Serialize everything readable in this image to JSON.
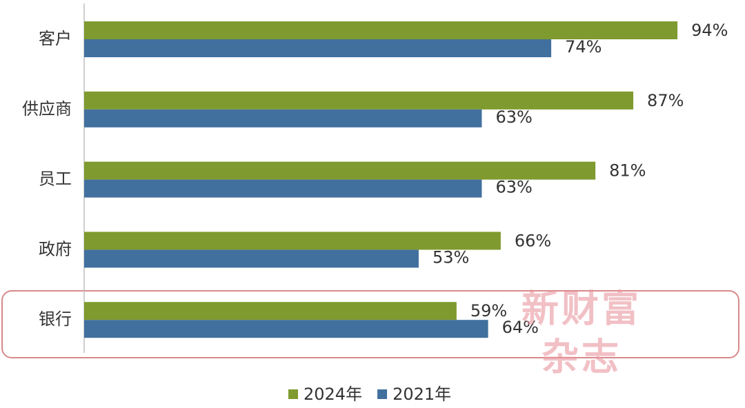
{
  "chart_data": {
    "type": "bar",
    "orientation": "horizontal",
    "categories": [
      "客户",
      "供应商",
      "员工",
      "政府",
      "银行"
    ],
    "series": [
      {
        "name": "2024年",
        "color": "#7f9a2e",
        "values": [
          94,
          87,
          81,
          66,
          59
        ],
        "value_labels": [
          "94%",
          "87%",
          "81%",
          "66%",
          "59%"
        ]
      },
      {
        "name": "2021年",
        "color": "#41709e",
        "values": [
          74,
          63,
          63,
          53,
          64
        ],
        "value_labels": [
          "74%",
          "63%",
          "63%",
          "53%",
          "64%"
        ]
      }
    ],
    "xlim": [
      0,
      100
    ],
    "legend": "bottom",
    "watermark": [
      "新财富",
      "杂志"
    ]
  }
}
